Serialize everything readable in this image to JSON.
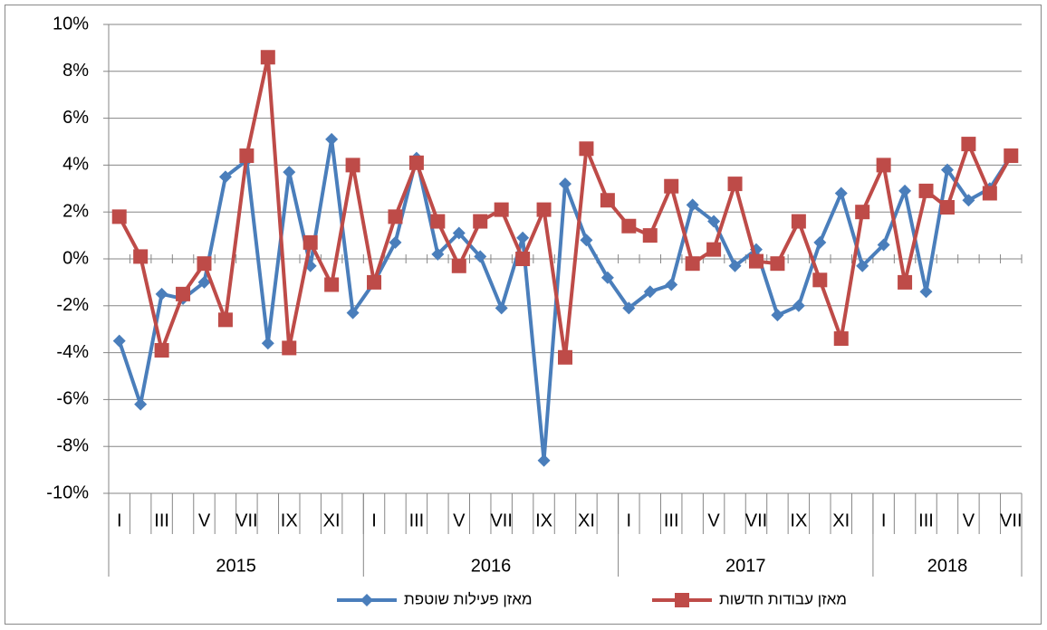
{
  "chart_data": {
    "type": "line",
    "categories": [
      "I",
      null,
      "III",
      null,
      "V",
      null,
      "VII",
      null,
      "IX",
      null,
      "XI",
      null,
      "I",
      null,
      "III",
      null,
      "V",
      null,
      "VII",
      null,
      "IX",
      null,
      "XI",
      null,
      "I",
      null,
      "III",
      null,
      "V",
      null,
      "VII",
      null,
      "IX",
      null,
      "XI",
      null,
      "I",
      null,
      "III",
      null,
      "V",
      null,
      "VII"
    ],
    "year_groups": [
      {
        "label": "2015",
        "count": 12
      },
      {
        "label": "2016",
        "count": 12
      },
      {
        "label": "2017",
        "count": 12
      },
      {
        "label": "2018",
        "count": 7
      }
    ],
    "series": [
      {
        "name": "מאזן פעילות שוטפת",
        "color": "#4a7ebb",
        "marker": "diamond",
        "values": [
          -3.5,
          -6.2,
          -1.5,
          -1.7,
          -1.0,
          3.5,
          4.2,
          -3.6,
          3.7,
          -0.3,
          5.1,
          -2.3,
          -1.0,
          0.7,
          4.3,
          0.2,
          1.1,
          0.1,
          -2.1,
          0.9,
          -8.6,
          3.2,
          0.8,
          -0.8,
          -2.1,
          -1.4,
          -1.1,
          2.3,
          1.6,
          -0.3,
          0.4,
          -2.4,
          -2.0,
          0.7,
          2.8,
          -0.3,
          0.6,
          2.9,
          -1.4,
          3.8,
          2.5,
          3.0,
          4.4
        ]
      },
      {
        "name": "מאזן עבודות חדשות",
        "color": "#be4b48",
        "marker": "square",
        "values": [
          1.8,
          0.1,
          -3.9,
          -1.5,
          -0.2,
          -2.6,
          4.4,
          8.6,
          -3.8,
          0.7,
          -1.1,
          4.0,
          -1.0,
          1.8,
          4.1,
          1.6,
          -0.3,
          1.6,
          2.1,
          0.0,
          2.1,
          -4.2,
          4.7,
          2.5,
          1.4,
          1.0,
          3.1,
          -0.2,
          0.4,
          3.2,
          -0.1,
          -0.2,
          1.6,
          -0.9,
          -3.4,
          2.0,
          4.0,
          -1.0,
          2.9,
          2.2,
          4.9,
          2.8,
          4.4
        ]
      }
    ],
    "ylim": [
      -10,
      10
    ],
    "yticks": [
      {
        "value": -10,
        "label": "-10%"
      },
      {
        "value": -8,
        "label": "-8%"
      },
      {
        "value": -6,
        "label": "-6%"
      },
      {
        "value": -4,
        "label": "-4%"
      },
      {
        "value": -2,
        "label": "-2%"
      },
      {
        "value": 0,
        "label": "0%"
      },
      {
        "value": 2,
        "label": "2%"
      },
      {
        "value": 4,
        "label": "4%"
      },
      {
        "value": 6,
        "label": "6%"
      },
      {
        "value": 8,
        "label": "8%"
      },
      {
        "value": 10,
        "label": "10%"
      }
    ],
    "grid": true,
    "legend": "bottom"
  }
}
